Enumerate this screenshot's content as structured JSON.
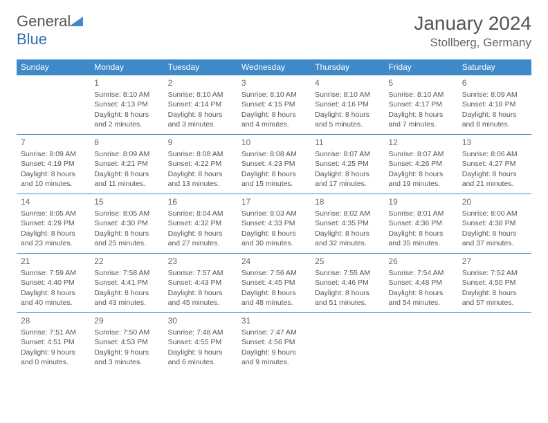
{
  "logo": {
    "text_general": "General",
    "text_blue": "Blue"
  },
  "title": "January 2024",
  "location": "Stollberg, Germany",
  "colors": {
    "header_bg": "#3f89c9",
    "header_text": "#ffffff",
    "cell_border": "#3f89c9",
    "text": "#555555",
    "logo_blue": "#2f6fb0",
    "logo_gray": "#6a6a6a",
    "background": "#ffffff"
  },
  "typography": {
    "title_fontsize": 28,
    "location_fontsize": 17,
    "header_fontsize": 12,
    "daynum_fontsize": 12,
    "cell_fontsize": 10.5
  },
  "weekdays": [
    "Sunday",
    "Monday",
    "Tuesday",
    "Wednesday",
    "Thursday",
    "Friday",
    "Saturday"
  ],
  "weeks": [
    [
      null,
      {
        "day": "1",
        "sunrise": "Sunrise: 8:10 AM",
        "sunset": "Sunset: 4:13 PM",
        "day1": "Daylight: 8 hours",
        "day2": "and 2 minutes."
      },
      {
        "day": "2",
        "sunrise": "Sunrise: 8:10 AM",
        "sunset": "Sunset: 4:14 PM",
        "day1": "Daylight: 8 hours",
        "day2": "and 3 minutes."
      },
      {
        "day": "3",
        "sunrise": "Sunrise: 8:10 AM",
        "sunset": "Sunset: 4:15 PM",
        "day1": "Daylight: 8 hours",
        "day2": "and 4 minutes."
      },
      {
        "day": "4",
        "sunrise": "Sunrise: 8:10 AM",
        "sunset": "Sunset: 4:16 PM",
        "day1": "Daylight: 8 hours",
        "day2": "and 5 minutes."
      },
      {
        "day": "5",
        "sunrise": "Sunrise: 8:10 AM",
        "sunset": "Sunset: 4:17 PM",
        "day1": "Daylight: 8 hours",
        "day2": "and 7 minutes."
      },
      {
        "day": "6",
        "sunrise": "Sunrise: 8:09 AM",
        "sunset": "Sunset: 4:18 PM",
        "day1": "Daylight: 8 hours",
        "day2": "and 8 minutes."
      }
    ],
    [
      {
        "day": "7",
        "sunrise": "Sunrise: 8:09 AM",
        "sunset": "Sunset: 4:19 PM",
        "day1": "Daylight: 8 hours",
        "day2": "and 10 minutes."
      },
      {
        "day": "8",
        "sunrise": "Sunrise: 8:09 AM",
        "sunset": "Sunset: 4:21 PM",
        "day1": "Daylight: 8 hours",
        "day2": "and 11 minutes."
      },
      {
        "day": "9",
        "sunrise": "Sunrise: 8:08 AM",
        "sunset": "Sunset: 4:22 PM",
        "day1": "Daylight: 8 hours",
        "day2": "and 13 minutes."
      },
      {
        "day": "10",
        "sunrise": "Sunrise: 8:08 AM",
        "sunset": "Sunset: 4:23 PM",
        "day1": "Daylight: 8 hours",
        "day2": "and 15 minutes."
      },
      {
        "day": "11",
        "sunrise": "Sunrise: 8:07 AM",
        "sunset": "Sunset: 4:25 PM",
        "day1": "Daylight: 8 hours",
        "day2": "and 17 minutes."
      },
      {
        "day": "12",
        "sunrise": "Sunrise: 8:07 AM",
        "sunset": "Sunset: 4:26 PM",
        "day1": "Daylight: 8 hours",
        "day2": "and 19 minutes."
      },
      {
        "day": "13",
        "sunrise": "Sunrise: 8:06 AM",
        "sunset": "Sunset: 4:27 PM",
        "day1": "Daylight: 8 hours",
        "day2": "and 21 minutes."
      }
    ],
    [
      {
        "day": "14",
        "sunrise": "Sunrise: 8:05 AM",
        "sunset": "Sunset: 4:29 PM",
        "day1": "Daylight: 8 hours",
        "day2": "and 23 minutes."
      },
      {
        "day": "15",
        "sunrise": "Sunrise: 8:05 AM",
        "sunset": "Sunset: 4:30 PM",
        "day1": "Daylight: 8 hours",
        "day2": "and 25 minutes."
      },
      {
        "day": "16",
        "sunrise": "Sunrise: 8:04 AM",
        "sunset": "Sunset: 4:32 PM",
        "day1": "Daylight: 8 hours",
        "day2": "and 27 minutes."
      },
      {
        "day": "17",
        "sunrise": "Sunrise: 8:03 AM",
        "sunset": "Sunset: 4:33 PM",
        "day1": "Daylight: 8 hours",
        "day2": "and 30 minutes."
      },
      {
        "day": "18",
        "sunrise": "Sunrise: 8:02 AM",
        "sunset": "Sunset: 4:35 PM",
        "day1": "Daylight: 8 hours",
        "day2": "and 32 minutes."
      },
      {
        "day": "19",
        "sunrise": "Sunrise: 8:01 AM",
        "sunset": "Sunset: 4:36 PM",
        "day1": "Daylight: 8 hours",
        "day2": "and 35 minutes."
      },
      {
        "day": "20",
        "sunrise": "Sunrise: 8:00 AM",
        "sunset": "Sunset: 4:38 PM",
        "day1": "Daylight: 8 hours",
        "day2": "and 37 minutes."
      }
    ],
    [
      {
        "day": "21",
        "sunrise": "Sunrise: 7:59 AM",
        "sunset": "Sunset: 4:40 PM",
        "day1": "Daylight: 8 hours",
        "day2": "and 40 minutes."
      },
      {
        "day": "22",
        "sunrise": "Sunrise: 7:58 AM",
        "sunset": "Sunset: 4:41 PM",
        "day1": "Daylight: 8 hours",
        "day2": "and 43 minutes."
      },
      {
        "day": "23",
        "sunrise": "Sunrise: 7:57 AM",
        "sunset": "Sunset: 4:43 PM",
        "day1": "Daylight: 8 hours",
        "day2": "and 45 minutes."
      },
      {
        "day": "24",
        "sunrise": "Sunrise: 7:56 AM",
        "sunset": "Sunset: 4:45 PM",
        "day1": "Daylight: 8 hours",
        "day2": "and 48 minutes."
      },
      {
        "day": "25",
        "sunrise": "Sunrise: 7:55 AM",
        "sunset": "Sunset: 4:46 PM",
        "day1": "Daylight: 8 hours",
        "day2": "and 51 minutes."
      },
      {
        "day": "26",
        "sunrise": "Sunrise: 7:54 AM",
        "sunset": "Sunset: 4:48 PM",
        "day1": "Daylight: 8 hours",
        "day2": "and 54 minutes."
      },
      {
        "day": "27",
        "sunrise": "Sunrise: 7:52 AM",
        "sunset": "Sunset: 4:50 PM",
        "day1": "Daylight: 8 hours",
        "day2": "and 57 minutes."
      }
    ],
    [
      {
        "day": "28",
        "sunrise": "Sunrise: 7:51 AM",
        "sunset": "Sunset: 4:51 PM",
        "day1": "Daylight: 9 hours",
        "day2": "and 0 minutes."
      },
      {
        "day": "29",
        "sunrise": "Sunrise: 7:50 AM",
        "sunset": "Sunset: 4:53 PM",
        "day1": "Daylight: 9 hours",
        "day2": "and 3 minutes."
      },
      {
        "day": "30",
        "sunrise": "Sunrise: 7:48 AM",
        "sunset": "Sunset: 4:55 PM",
        "day1": "Daylight: 9 hours",
        "day2": "and 6 minutes."
      },
      {
        "day": "31",
        "sunrise": "Sunrise: 7:47 AM",
        "sunset": "Sunset: 4:56 PM",
        "day1": "Daylight: 9 hours",
        "day2": "and 9 minutes."
      },
      null,
      null,
      null
    ]
  ]
}
